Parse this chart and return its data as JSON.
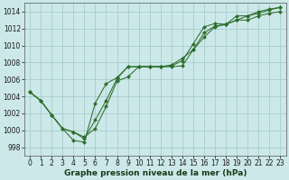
{
  "title": "Graphe pression niveau de la mer (hPa)",
  "bg_color": "#cce8e8",
  "grid_color": "#a0c8c8",
  "line_color": "#2d6e2d",
  "marker_color": "#2d6e2d",
  "xlim_min": -0.5,
  "xlim_max": 23.5,
  "ylim_min": 997.0,
  "ylim_max": 1015.0,
  "yticks": [
    998,
    1000,
    1002,
    1004,
    1006,
    1008,
    1010,
    1012,
    1014
  ],
  "xticks": [
    0,
    1,
    2,
    3,
    4,
    5,
    6,
    7,
    8,
    9,
    10,
    11,
    12,
    13,
    14,
    15,
    16,
    17,
    18,
    19,
    20,
    21,
    22,
    23
  ],
  "series": [
    [
      1004.5,
      1003.5,
      1001.8,
      1000.2,
      998.8,
      998.6,
      1003.2,
      1005.5,
      1006.2,
      1007.5,
      1007.5,
      1007.5,
      1007.5,
      1007.5,
      1007.6,
      1009.5,
      1011.5,
      1012.3,
      1012.5,
      1013.0,
      1013.0,
      1013.5,
      1013.8,
      1014.0
    ],
    [
      1004.5,
      1003.5,
      1001.8,
      1000.2,
      999.8,
      999.0,
      1001.2,
      1003.5,
      1006.1,
      1007.5,
      1007.5,
      1007.5,
      1007.5,
      1007.6,
      1008.2,
      1010.2,
      1012.2,
      1012.6,
      1012.5,
      1013.5,
      1013.5,
      1014.0,
      1014.3,
      1014.5
    ],
    [
      1004.5,
      1003.5,
      1001.8,
      1000.2,
      999.8,
      999.2,
      1000.2,
      1002.8,
      1005.8,
      1006.3,
      1007.5,
      1007.5,
      1007.5,
      1007.7,
      1008.5,
      1009.5,
      1011.0,
      1012.2,
      1012.5,
      1013.0,
      1013.5,
      1013.8,
      1014.2,
      1014.5
    ]
  ],
  "tick_fontsize": 5.5,
  "xlabel_fontsize": 6.5,
  "xlabel_fontweight": "bold",
  "xlabel_color": "#1a3a1a",
  "linewidth": 0.75,
  "markersize": 2.0
}
